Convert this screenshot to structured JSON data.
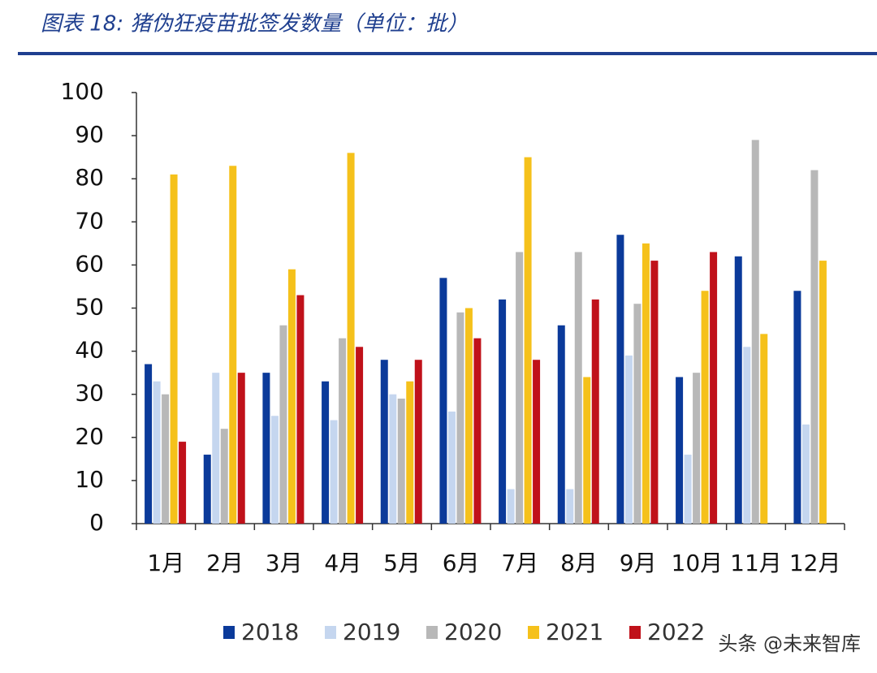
{
  "chart_data": {
    "type": "bar",
    "title": "图表 18: 猪伪狂疫苗批签发数量（单位：批）",
    "categories": [
      "1月",
      "2月",
      "3月",
      "4月",
      "5月",
      "6月",
      "7月",
      "8月",
      "9月",
      "10月",
      "11月",
      "12月"
    ],
    "series": [
      {
        "name": "2018",
        "color": "#0b3a9a",
        "values": [
          37,
          16,
          35,
          33,
          38,
          57,
          52,
          46,
          67,
          34,
          62,
          54
        ]
      },
      {
        "name": "2019",
        "color": "#c5d6ef",
        "values": [
          33,
          35,
          25,
          24,
          30,
          26,
          8,
          8,
          39,
          16,
          41,
          23
        ]
      },
      {
        "name": "2020",
        "color": "#b8b8b8",
        "values": [
          30,
          22,
          46,
          43,
          29,
          49,
          63,
          63,
          51,
          35,
          89,
          82
        ]
      },
      {
        "name": "2021",
        "color": "#f5c11b",
        "values": [
          81,
          83,
          59,
          86,
          33,
          50,
          85,
          34,
          65,
          54,
          44,
          61
        ]
      },
      {
        "name": "2022",
        "color": "#c0111a",
        "values": [
          19,
          35,
          53,
          41,
          38,
          43,
          38,
          52,
          61,
          63,
          null,
          null
        ]
      }
    ],
    "ylim": [
      0,
      100
    ],
    "yticks": [
      0,
      10,
      20,
      30,
      40,
      50,
      60,
      70,
      80,
      90,
      100
    ],
    "grid": false,
    "legend": "bottom",
    "watermark": "头条 @未来智库"
  }
}
